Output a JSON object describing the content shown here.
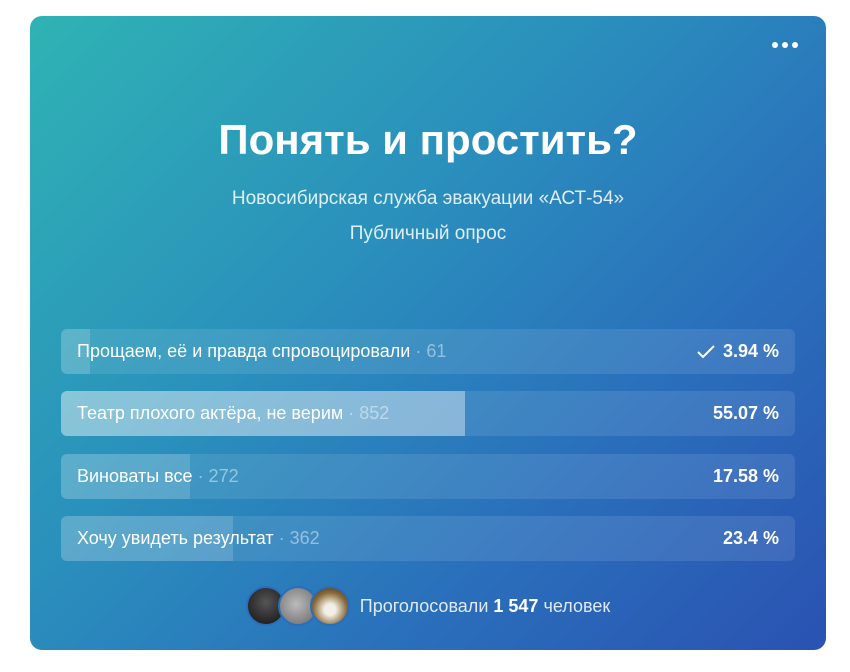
{
  "poll": {
    "title": "Понять и простить?",
    "author": "Новосибирская служба эвакуации «АСТ-54»",
    "type": "Публичный опрос",
    "options": [
      {
        "label": "Прощаем, её и правда спровоцировали",
        "count": "· 61",
        "percent": "3.94 %",
        "fraction": 0.0394,
        "voted": true
      },
      {
        "label": "Театр плохого актёра, не верим",
        "count": "· 852",
        "percent": "55.07 %",
        "fraction": 0.5507,
        "leading": true
      },
      {
        "label": "Виноваты все",
        "count": "· 272",
        "percent": "17.58 %",
        "fraction": 0.1758
      },
      {
        "label": "Хочу увидеть результат",
        "count": "· 362",
        "percent": "23.4 %",
        "fraction": 0.234
      }
    ],
    "footer": {
      "prefix": "Проголосовали",
      "total": "1 547",
      "suffix": "человек"
    }
  },
  "colors": {
    "gradient_start": "#2fb3b4",
    "gradient_end": "#2a52b2"
  }
}
